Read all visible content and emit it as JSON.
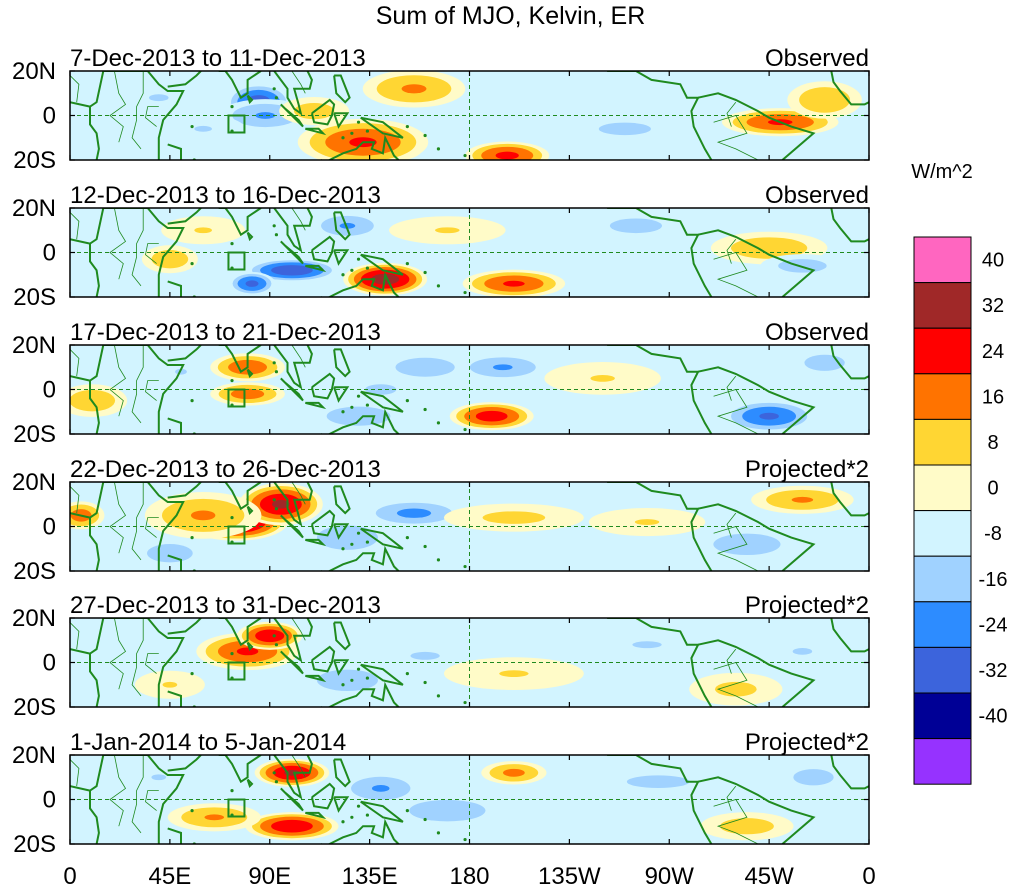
{
  "chart_data": {
    "type": "heatmap",
    "title": "Sum of MJO, Kelvin, ER",
    "colorbar": {
      "units": "W/m^2",
      "labels": [
        "40",
        "32",
        "24",
        "16",
        "8",
        "0",
        "-8",
        "-16",
        "-24",
        "-32",
        "-40"
      ],
      "colors": [
        "#ff66c0",
        "#a02828",
        "#ff0000",
        "#ff7300",
        "#ffd633",
        "#fffbc8",
        "#d2f4ff",
        "#a0d2ff",
        "#2d8cff",
        "#3c64dc",
        "#000096",
        "#9632ff"
      ]
    },
    "x_tick_labels": [
      "0",
      "45E",
      "90E",
      "135E",
      "180",
      "135W",
      "90W",
      "45W",
      "0"
    ],
    "y_tick_labels": [
      "20N",
      "0",
      "20S"
    ],
    "panels": [
      {
        "period": "7-Dec-2013 to 11-Dec-2013",
        "label": "Observed",
        "blobs": [
          [
            140,
            -15,
            18,
            6,
            40
          ],
          [
            132,
            -12,
            28,
            10,
            24
          ],
          [
            197,
            -18,
            18,
            6,
            26
          ],
          [
            155,
            12,
            22,
            8,
            17
          ],
          [
            85,
            6,
            14,
            8,
            -28
          ],
          [
            88,
            0,
            20,
            7,
            -16
          ],
          [
            320,
            -3,
            25,
            6,
            24
          ],
          [
            340,
            7,
            16,
            8,
            15
          ],
          [
            110,
            2,
            15,
            6,
            12
          ],
          [
            250,
            -6,
            25,
            6,
            -10
          ],
          [
            40,
            8,
            20,
            7,
            -8
          ],
          [
            60,
            -6,
            18,
            6,
            -8
          ]
        ]
      },
      {
        "period": "12-Dec-2013 to 16-Dec-2013",
        "label": "Observed",
        "blobs": [
          [
            142,
            -12,
            18,
            7,
            36
          ],
          [
            100,
            -8,
            20,
            5,
            -30
          ],
          [
            82,
            -14,
            10,
            5,
            -26
          ],
          [
            200,
            -14,
            22,
            6,
            24
          ],
          [
            125,
            12,
            16,
            6,
            -16
          ],
          [
            170,
            10,
            25,
            6,
            8
          ],
          [
            45,
            -3,
            12,
            6,
            14
          ],
          [
            315,
            2,
            25,
            7,
            14
          ],
          [
            330,
            -6,
            18,
            5,
            -12
          ],
          [
            255,
            12,
            25,
            7,
            -10
          ],
          [
            60,
            10,
            18,
            6,
            8
          ]
        ]
      },
      {
        "period": "17-Dec-2013 to 21-Dec-2013",
        "label": "Observed",
        "blobs": [
          [
            80,
            10,
            16,
            6,
            22
          ],
          [
            80,
            -2,
            16,
            5,
            20
          ],
          [
            190,
            -12,
            18,
            6,
            28
          ],
          [
            160,
            10,
            22,
            7,
            -12
          ],
          [
            130,
            -12,
            20,
            6,
            -15
          ],
          [
            140,
            0,
            15,
            5,
            -10
          ],
          [
            315,
            -12,
            20,
            7,
            -24
          ],
          [
            195,
            10,
            20,
            6,
            -16
          ],
          [
            340,
            12,
            15,
            6,
            -12
          ],
          [
            10,
            -5,
            15,
            7,
            14
          ],
          [
            240,
            5,
            25,
            7,
            8
          ],
          [
            50,
            8,
            12,
            6,
            -8
          ]
        ]
      },
      {
        "period": "22-Dec-2013 to 26-Dec-2013",
        "label": "Projected*2",
        "blobs": [
          [
            75,
            2,
            22,
            8,
            36
          ],
          [
            95,
            10,
            18,
            9,
            32
          ],
          [
            60,
            5,
            25,
            10,
            16
          ],
          [
            125,
            -5,
            20,
            8,
            -14
          ],
          [
            155,
            6,
            22,
            6,
            -18
          ],
          [
            200,
            4,
            30,
            6,
            10
          ],
          [
            305,
            -8,
            22,
            7,
            -14
          ],
          [
            330,
            12,
            22,
            6,
            16
          ],
          [
            45,
            -12,
            15,
            6,
            -14
          ],
          [
            260,
            2,
            25,
            6,
            8
          ],
          [
            5,
            5,
            10,
            6,
            20
          ]
        ]
      },
      {
        "period": "27-Dec-2013 to 31-Dec-2013",
        "label": "Projected*2",
        "blobs": [
          [
            80,
            5,
            22,
            8,
            24
          ],
          [
            90,
            12,
            14,
            6,
            30
          ],
          [
            125,
            -8,
            20,
            7,
            -14
          ],
          [
            160,
            3,
            30,
            8,
            -8
          ],
          [
            200,
            -5,
            30,
            7,
            8
          ],
          [
            260,
            8,
            30,
            7,
            -8
          ],
          [
            300,
            -12,
            20,
            7,
            10
          ],
          [
            45,
            -10,
            15,
            6,
            8
          ],
          [
            330,
            5,
            20,
            7,
            -8
          ]
        ]
      },
      {
        "period": "1-Jan-2014 to 5-Jan-2014",
        "label": "Projected*2",
        "blobs": [
          [
            100,
            12,
            16,
            6,
            32
          ],
          [
            100,
            -12,
            20,
            6,
            30
          ],
          [
            65,
            -8,
            20,
            6,
            16
          ],
          [
            140,
            5,
            18,
            7,
            -16
          ],
          [
            170,
            -5,
            25,
            7,
            -14
          ],
          [
            200,
            12,
            14,
            5,
            18
          ],
          [
            265,
            8,
            30,
            6,
            -10
          ],
          [
            305,
            -12,
            20,
            6,
            12
          ],
          [
            335,
            10,
            15,
            6,
            -12
          ],
          [
            40,
            10,
            15,
            6,
            -8
          ]
        ]
      }
    ]
  }
}
